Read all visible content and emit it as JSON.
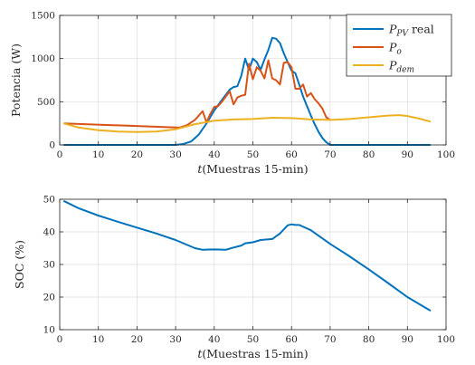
{
  "chart_data": [
    {
      "type": "line",
      "xlabel_italic": "t",
      "xlabel_rest": "(Muestras 15-min)",
      "ylabel": "Potencia (W)",
      "xlim": [
        0,
        100
      ],
      "ylim": [
        0,
        1500
      ],
      "xticks": [
        0,
        10,
        20,
        30,
        40,
        50,
        60,
        70,
        80,
        90,
        100
      ],
      "yticks": [
        0,
        500,
        1000,
        1500
      ],
      "grid": true,
      "legend_position": "top-right",
      "series": [
        {
          "name_main": "P",
          "name_sub": "PV",
          "name_suffix": " real",
          "color": "#0072BD",
          "x": [
            1,
            30,
            32,
            34,
            36,
            38,
            40,
            42,
            44,
            45,
            46,
            47,
            48,
            49,
            50,
            51,
            52,
            53,
            54,
            55,
            56,
            57,
            58,
            59,
            60,
            61,
            62,
            63,
            64,
            65,
            66,
            67,
            68,
            69,
            70,
            71,
            96
          ],
          "y": [
            0,
            0,
            10,
            40,
            120,
            250,
            400,
            520,
            640,
            670,
            680,
            800,
            1000,
            870,
            1000,
            960,
            870,
            990,
            1100,
            1240,
            1230,
            1180,
            1060,
            960,
            860,
            830,
            700,
            560,
            450,
            340,
            240,
            150,
            80,
            30,
            0,
            0,
            0
          ]
        },
        {
          "name_main": "P",
          "name_sub": "o",
          "name_suffix": "",
          "color": "#D95319",
          "x": [
            1,
            31,
            33,
            35,
            37,
            38,
            39,
            40,
            41,
            42,
            43,
            44,
            45,
            46,
            47,
            48,
            49,
            50,
            51,
            52,
            53,
            54,
            55,
            56,
            57,
            58,
            59,
            60,
            61,
            62,
            63,
            64,
            65,
            66,
            67,
            68,
            69,
            70
          ],
          "y": [
            250,
            200,
            230,
            290,
            390,
            260,
            360,
            440,
            450,
            500,
            560,
            620,
            470,
            550,
            570,
            580,
            940,
            760,
            900,
            860,
            770,
            980,
            770,
            750,
            700,
            950,
            960,
            900,
            650,
            650,
            700,
            560,
            600,
            530,
            480,
            420,
            320,
            290
          ]
        },
        {
          "name_main": "P",
          "name_sub": "dem",
          "name_suffix": "",
          "color": "#EDB120",
          "x": [
            1,
            5,
            10,
            15,
            20,
            25,
            30,
            35,
            40,
            45,
            50,
            55,
            60,
            65,
            70,
            75,
            80,
            85,
            88,
            90,
            93,
            96
          ],
          "y": [
            250,
            200,
            170,
            155,
            150,
            155,
            180,
            240,
            280,
            295,
            300,
            315,
            310,
            295,
            290,
            300,
            320,
            340,
            345,
            335,
            305,
            270
          ]
        }
      ]
    },
    {
      "type": "line",
      "xlabel_italic": "t",
      "xlabel_rest": "(Muestras 15-min)",
      "ylabel": "SOC (%)",
      "xlim": [
        0,
        100
      ],
      "ylim": [
        10,
        50
      ],
      "xticks": [
        0,
        10,
        20,
        30,
        40,
        50,
        60,
        70,
        80,
        90,
        100
      ],
      "yticks": [
        10,
        20,
        30,
        40,
        50
      ],
      "grid": true,
      "series": [
        {
          "color": "#0072BD",
          "x": [
            1,
            5,
            10,
            15,
            20,
            25,
            30,
            35,
            37,
            40,
            43,
            45,
            47,
            48,
            50,
            52,
            55,
            57,
            59,
            60,
            61,
            62,
            65,
            70,
            75,
            80,
            85,
            90,
            96
          ],
          "y": [
            49.5,
            47.2,
            45,
            43.1,
            41.3,
            39.5,
            37.5,
            35.0,
            34.5,
            34.6,
            34.5,
            35.2,
            35.8,
            36.5,
            36.8,
            37.5,
            37.8,
            39.5,
            42,
            42.3,
            42.1,
            42.1,
            40.5,
            36.3,
            32.5,
            28.5,
            24.3,
            20,
            15.8
          ]
        }
      ]
    }
  ]
}
